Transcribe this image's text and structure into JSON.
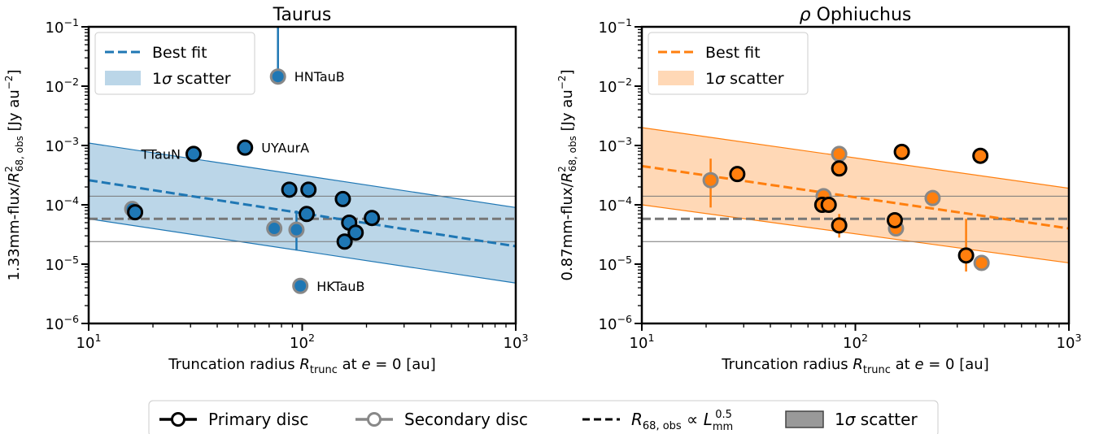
{
  "chart_data": [
    {
      "type": "scatter",
      "title": "Taurus",
      "xlabel": "Truncation radius R_trunc at e = 0 [au]",
      "ylabel": "1.33mm-flux/R²_68,obs [Jy au⁻²]",
      "xscale": "log",
      "yscale": "log",
      "xlim": [
        10,
        1000
      ],
      "ylim": [
        1e-06,
        0.1
      ],
      "x_ticks": [
        "10^1",
        "10^2",
        "10^3"
      ],
      "y_ticks": [
        "10^-6",
        "10^-5",
        "10^-4",
        "10^-3",
        "10^-2",
        "10^-1"
      ],
      "accent": "#1f77b4",
      "legend": {
        "position": "top-left",
        "entries": [
          "Best fit",
          "1σ scatter"
        ]
      },
      "best_fit": {
        "x": [
          10,
          1000
        ],
        "y": [
          0.00026,
          2e-05
        ]
      },
      "scatter_band": {
        "x": [
          10,
          1000
        ],
        "upper": [
          0.0011,
          9e-05
        ],
        "lower": [
          5.8e-05,
          4.8e-06
        ]
      },
      "reference": {
        "y": 5.8e-05,
        "upper": 0.00014,
        "lower": 2.4e-05
      },
      "primary": [
        {
          "x": 16.5,
          "y": 7.5e-05
        },
        {
          "x": 31,
          "y": 0.00072,
          "label": "TTauN"
        },
        {
          "x": 54,
          "y": 0.00092,
          "label": "UYAurA"
        },
        {
          "x": 87,
          "y": 0.00018
        },
        {
          "x": 107,
          "y": 0.00018
        },
        {
          "x": 105,
          "y": 7e-05
        },
        {
          "x": 155,
          "y": 0.000125
        },
        {
          "x": 166,
          "y": 5e-05
        },
        {
          "x": 178,
          "y": 3.4e-05
        },
        {
          "x": 158,
          "y": 2.4e-05
        },
        {
          "x": 212,
          "y": 6e-05
        }
      ],
      "secondary": [
        {
          "x": 16,
          "y": 8.5e-05
        },
        {
          "x": 74,
          "y": 4e-05
        },
        {
          "x": 94,
          "y": 3.8e-05,
          "err": [
            1.7e-05,
            8e-05
          ]
        },
        {
          "x": 77,
          "y": 0.0145,
          "err": [
            0.0145,
            0.1
          ],
          "label": "HNTauB"
        },
        {
          "x": 98,
          "y": 4.3e-06,
          "label": "HKTauB"
        }
      ]
    },
    {
      "type": "scatter",
      "title": "ρ Ophiuchus",
      "xlabel": "Truncation radius R_trunc at e = 0 [au]",
      "ylabel": "0.87mm-flux/R²_68,obs [Jy au⁻²]",
      "xscale": "log",
      "yscale": "log",
      "xlim": [
        10,
        1000
      ],
      "ylim": [
        1e-06,
        0.1
      ],
      "x_ticks": [
        "10^1",
        "10^2",
        "10^3"
      ],
      "y_ticks": [
        "10^-6",
        "10^-5",
        "10^-4",
        "10^-3",
        "10^-2",
        "10^-1"
      ],
      "accent": "#ff7f0e",
      "legend": {
        "position": "top-left",
        "entries": [
          "Best fit",
          "1σ scatter"
        ]
      },
      "best_fit": {
        "x": [
          10,
          1000
        ],
        "y": [
          0.00045,
          4e-05
        ]
      },
      "scatter_band": {
        "x": [
          10,
          1000
        ],
        "upper": [
          0.002,
          0.00019
        ],
        "lower": [
          0.0001,
          1.05e-05
        ]
      },
      "reference": {
        "y": 5.8e-05,
        "upper": 0.00014,
        "lower": 2.4e-05
      },
      "primary": [
        {
          "x": 28,
          "y": 0.00033
        },
        {
          "x": 70,
          "y": 0.0001
        },
        {
          "x": 75,
          "y": 0.0001
        },
        {
          "x": 84,
          "y": 0.00041
        },
        {
          "x": 84,
          "y": 4.5e-05,
          "err": [
            2.8e-05,
            7e-05
          ]
        },
        {
          "x": 153,
          "y": 5.5e-05
        },
        {
          "x": 165,
          "y": 0.00078
        },
        {
          "x": 330,
          "y": 1.4e-05,
          "err": [
            7.5e-06,
            5.8e-05
          ]
        },
        {
          "x": 385,
          "y": 0.00067
        }
      ],
      "secondary": [
        {
          "x": 21,
          "y": 0.00026,
          "err": [
            9e-05,
            0.0006
          ]
        },
        {
          "x": 71,
          "y": 0.00014
        },
        {
          "x": 84,
          "y": 0.00072
        },
        {
          "x": 155,
          "y": 4e-05
        },
        {
          "x": 230,
          "y": 0.00013
        },
        {
          "x": 390,
          "y": 1.05e-05
        }
      ]
    }
  ],
  "figure_legend": {
    "entries": [
      "Primary disc",
      "Secondary disc",
      "R_68,obs ∝ L_mm^0.5",
      "1σ scatter"
    ]
  }
}
